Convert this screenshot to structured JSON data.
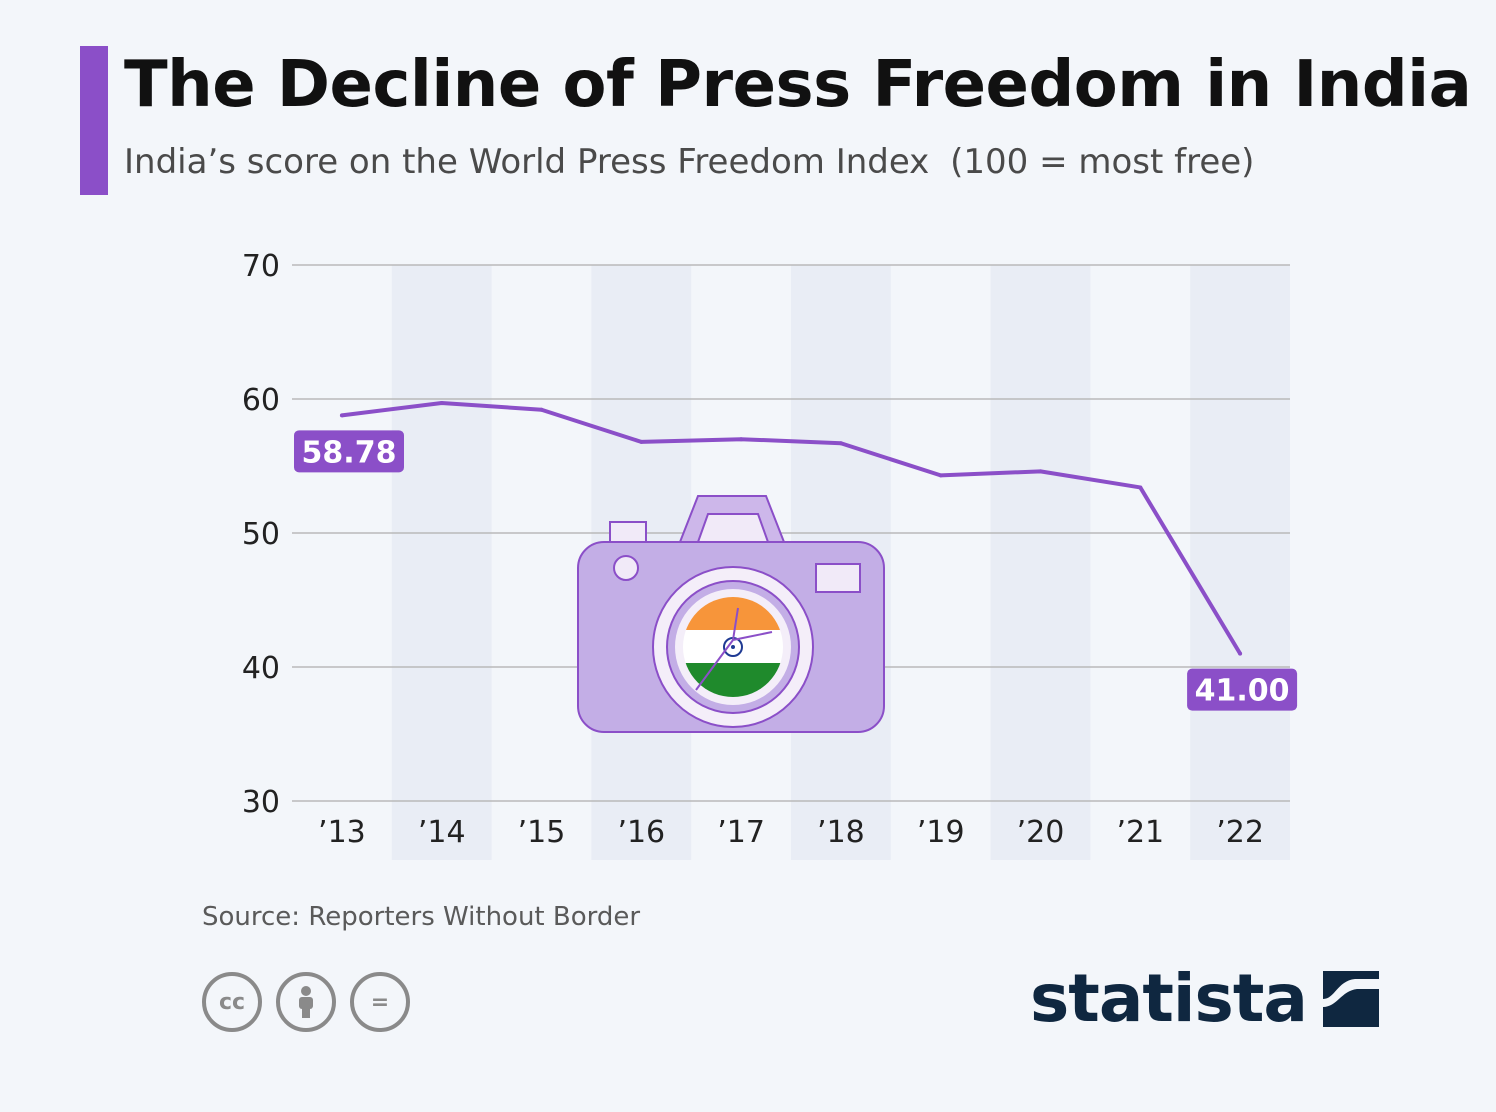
{
  "header": {
    "title": "The Decline of Press Freedom in India",
    "subtitle": "India’s score on the World Press Freedom Index",
    "subtitle_note": "(100 = most free)"
  },
  "colors": {
    "accent": "#8b4fc8",
    "line": "#8b4fc8",
    "label_bg": "#8b4fc8",
    "band": "#e9edf5",
    "grid": "#b9b9b9",
    "background": "#f3f6fa"
  },
  "chart_data": {
    "type": "line",
    "title": "The Decline of Press Freedom in India",
    "xlabel": "",
    "ylabel": "",
    "categories": [
      "’13",
      "’14",
      "’15",
      "’16",
      "’17",
      "’18",
      "’19",
      "’20",
      "’21",
      "’22"
    ],
    "values": [
      58.78,
      59.7,
      59.2,
      56.8,
      57.0,
      56.7,
      54.3,
      54.6,
      53.4,
      41.0
    ],
    "ylim": [
      30,
      70
    ],
    "yticks": [
      30,
      40,
      50,
      60,
      70
    ],
    "grid": true,
    "data_labels": [
      {
        "index": 0,
        "text": "58.78"
      },
      {
        "index": 9,
        "text": "41.00"
      }
    ],
    "illustration": "camera-with-india-flag-icon"
  },
  "footer": {
    "source": "Source: Reporters Without Border",
    "license_icons": [
      "cc-icon",
      "by-icon",
      "nd-icon"
    ],
    "cc_label": "cc",
    "nd_label": "=",
    "brand": "statista"
  }
}
